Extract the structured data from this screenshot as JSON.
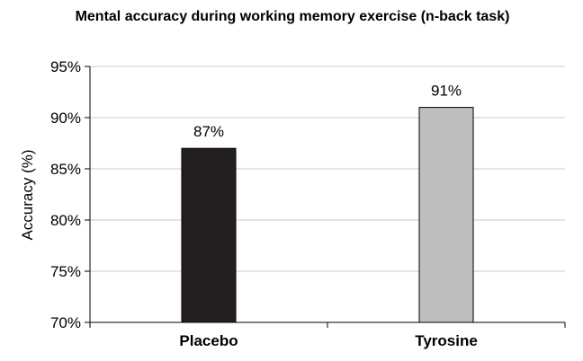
{
  "chart_data": {
    "type": "bar",
    "title": "Mental accuracy during working memory exercise (n-back task)",
    "xlabel": "",
    "ylabel": "Accuracy (%)",
    "categories": [
      "Placebo",
      "Tyrosine"
    ],
    "values": [
      87,
      91
    ],
    "data_labels": [
      "87%",
      "91%"
    ],
    "bar_colors": [
      "#231f20",
      "#bcbec0"
    ],
    "ylim": [
      70,
      95
    ],
    "yticks": [
      70,
      75,
      80,
      85,
      90,
      95
    ],
    "ytick_labels": [
      "70%",
      "75%",
      "80%",
      "85%",
      "90%",
      "95%"
    ],
    "grid": true,
    "legend": "none"
  }
}
